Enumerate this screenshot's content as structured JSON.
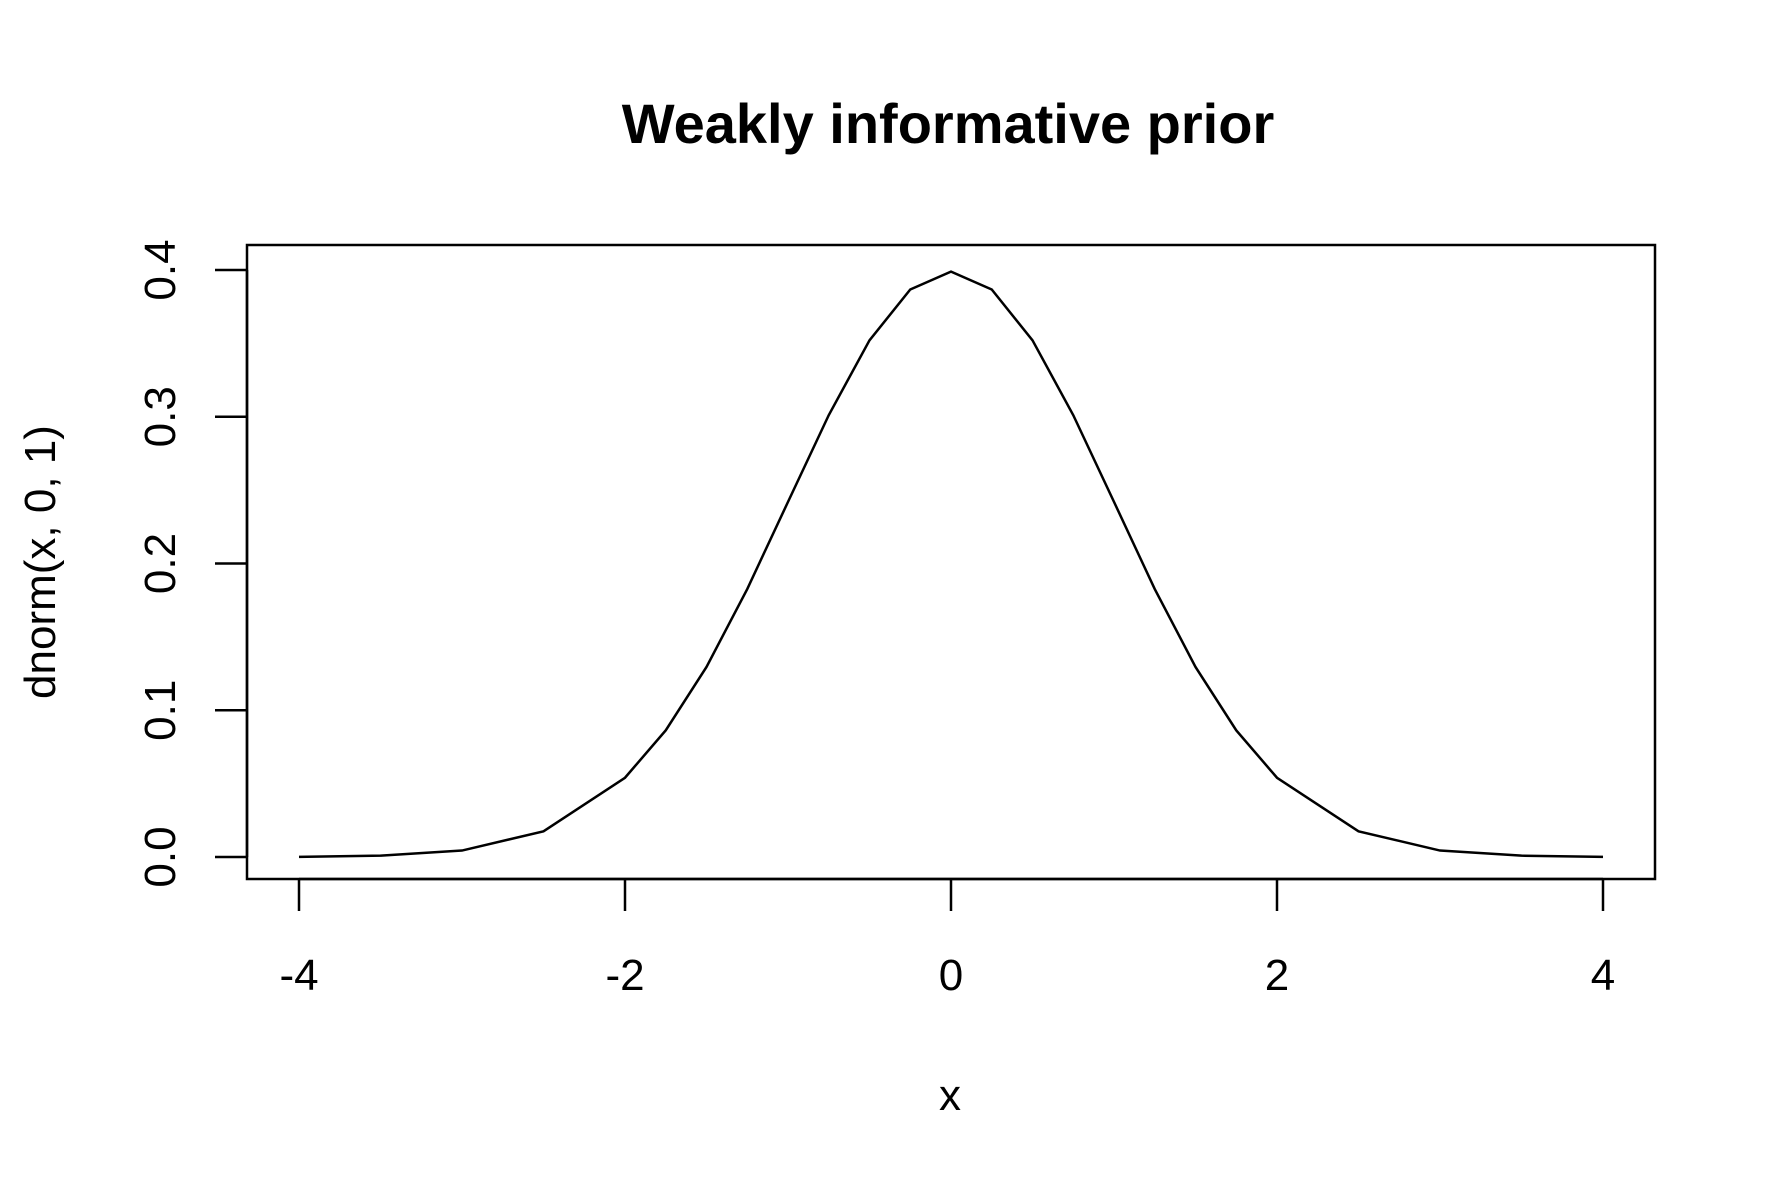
{
  "chart_data": {
    "type": "line",
    "title": "Weakly informative prior",
    "xlabel": "x",
    "ylabel": "dnorm(x, 0, 1)",
    "xlim": [
      -4,
      4
    ],
    "ylim": [
      0,
      0.4
    ],
    "x_ticks": [
      -4,
      -2,
      0,
      2,
      4
    ],
    "x_tick_labels": [
      "-4",
      "-2",
      "0",
      "2",
      "4"
    ],
    "y_ticks": [
      0.0,
      0.1,
      0.2,
      0.3,
      0.4
    ],
    "y_tick_labels": [
      "0.0",
      "0.1",
      "0.2",
      "0.3",
      "0.4"
    ],
    "grid": false,
    "legend": "none",
    "line_color": "#000000",
    "series": [
      {
        "x": [
          -4.0,
          -3.5,
          -3.0,
          -2.5,
          -2.0,
          -1.75,
          -1.5,
          -1.25,
          -1.0,
          -0.75,
          -0.5,
          -0.25,
          0.0,
          0.25,
          0.5,
          0.75,
          1.0,
          1.25,
          1.5,
          1.75,
          2.0,
          2.5,
          3.0,
          3.5,
          4.0
        ],
        "y": [
          0.0001,
          0.0009,
          0.0044,
          0.0175,
          0.054,
          0.0863,
          0.1295,
          0.1826,
          0.242,
          0.3011,
          0.3521,
          0.3867,
          0.3989,
          0.3867,
          0.3521,
          0.3011,
          0.242,
          0.1826,
          0.1295,
          0.0863,
          0.054,
          0.0175,
          0.0044,
          0.0009,
          0.0001
        ]
      }
    ]
  }
}
